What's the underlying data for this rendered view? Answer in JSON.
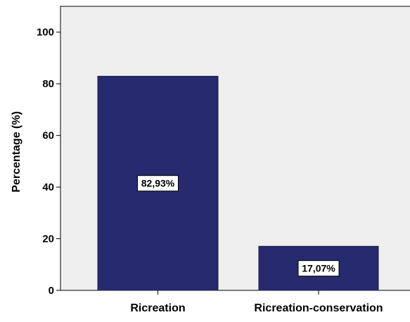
{
  "chart_data": {
    "type": "bar",
    "categories": [
      "Ricreation",
      "Ricreation-conservation"
    ],
    "values": [
      82.93,
      17.07
    ],
    "data_labels": [
      "82,93%",
      "17,07%"
    ],
    "ylabel": "Percentage (%)",
    "ylim": [
      0,
      110
    ],
    "yticks": [
      0,
      20,
      40,
      60,
      80,
      100
    ],
    "ytick_labels": [
      "0",
      "20",
      "40",
      "60",
      "80",
      "100"
    ],
    "grid": false,
    "colors": {
      "bar_fill": "#262A6E",
      "bar_stroke": "#1A1D4D",
      "plot_background": "#EFEFEF",
      "axis": "#000000",
      "label_box_fill": "#FFFFFF",
      "label_box_stroke": "#000000",
      "text": "#000000"
    }
  }
}
